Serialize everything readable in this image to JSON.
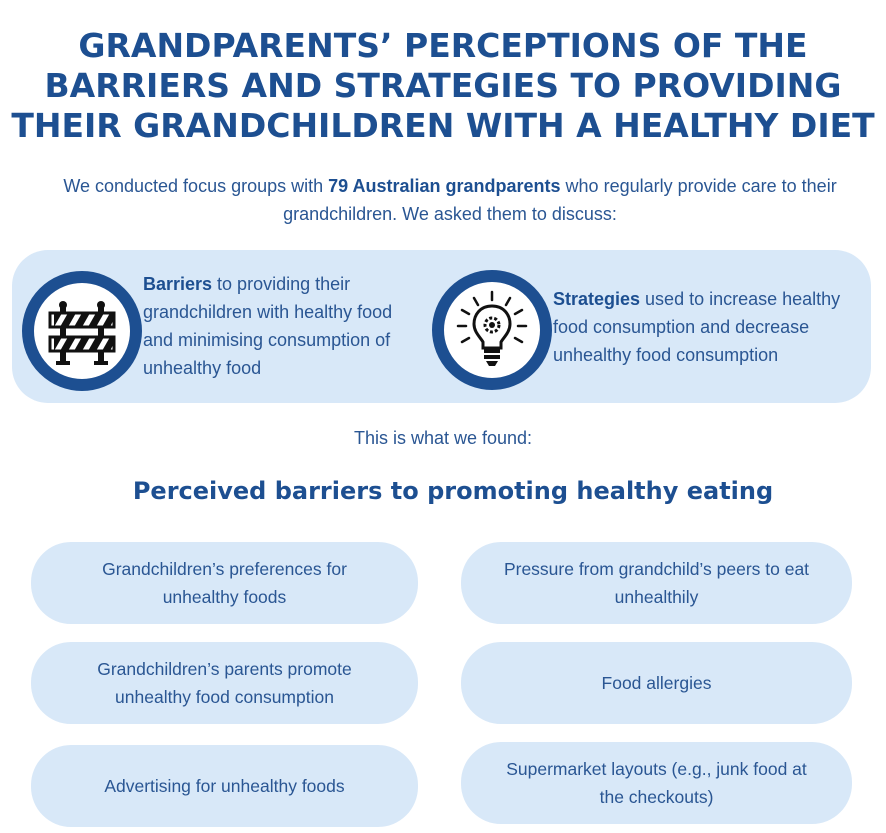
{
  "title": {
    "line1": "GRANDPARENTS’ PERCEPTIONS OF THE",
    "line2": "BARRIERS AND STRATEGIES TO PROVIDING",
    "line3": "THEIR GRANDCHILDREN WITH A HEALTHY DIET"
  },
  "intro": {
    "before": "We conducted focus groups with ",
    "bold": "79 Australian grandparents",
    "after": " who regularly provide care to their grandchildren. We asked them to discuss:"
  },
  "barriers": {
    "icon": "road-barrier-icon",
    "bold": "Barriers",
    "text": " to providing their grandchildren with healthy food and minimising consumption of unhealthy food"
  },
  "strategies": {
    "icon": "lightbulb-gear-icon",
    "bold": "Strategies",
    "text": " used to increase healthy food consumption and decrease unhealthy food consumption"
  },
  "found_text": "This is what we found:",
  "section_title": "Perceived barriers to promoting healthy eating",
  "barrier_items": [
    "Grandchildren’s preferences for unhealthy foods",
    "Pressure from grandchild’s peers to eat unhealthily",
    "Grandchildren’s parents promote unhealthy food consumption",
    "Food allergies",
    "Advertising for unhealthy foods",
    "Supermarket layouts (e.g., junk food at the checkouts)"
  ],
  "colors": {
    "primary": "#1d4f91",
    "text": "#2a5693",
    "panel_bg": "#d8e8f8",
    "page_bg": "#ffffff"
  }
}
